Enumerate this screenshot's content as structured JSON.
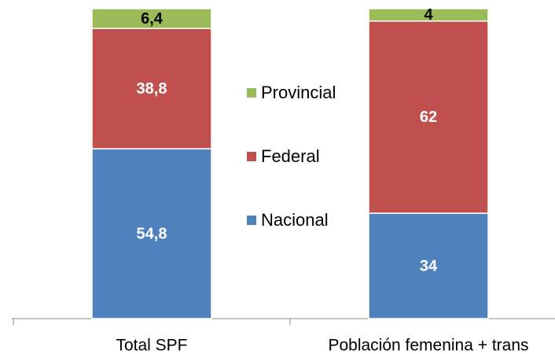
{
  "chart_data": {
    "type": "stacked_bar",
    "categories": [
      "Total SPF",
      "Población femenina + trans"
    ],
    "series": [
      {
        "name": "Nacional",
        "color": "#4f81bd",
        "label_color": "#ffffff",
        "values": [
          54.8,
          34
        ],
        "value_labels": [
          "54,8",
          "34"
        ]
      },
      {
        "name": "Federal",
        "color": "#c0504d",
        "label_color": "#ffffff",
        "values": [
          38.8,
          62
        ],
        "value_labels": [
          "38,8",
          "62"
        ]
      },
      {
        "name": "Provincial",
        "color": "#9bbb59",
        "label_color": "#000000",
        "values": [
          6.4,
          4
        ],
        "value_labels": [
          "6,4",
          "4"
        ]
      }
    ],
    "legend": "center"
  }
}
